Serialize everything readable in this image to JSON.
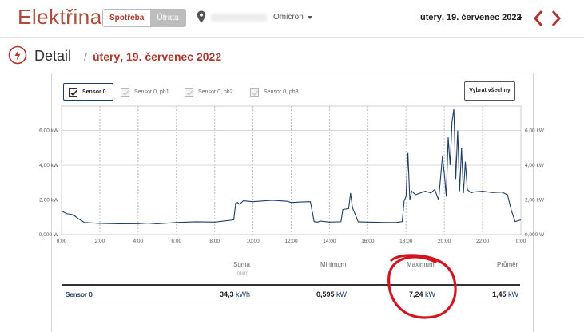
{
  "header": {
    "app_title": "Elektřina",
    "tabs": [
      {
        "label": "Spotřeba",
        "active": true
      },
      {
        "label": "Útrata",
        "active": false
      }
    ],
    "location": "Omicron",
    "date": "úterý, 19. červenec 2022",
    "accent_color": "#b0352b"
  },
  "page": {
    "title": "Detail",
    "breadcrumb_date": "úterý, 19. červenec 2022",
    "slash": "/"
  },
  "sensors": {
    "buttons": [
      {
        "label": "Sensor 0",
        "checked": true
      },
      {
        "label": "Sensor 0, ph1",
        "checked": false
      },
      {
        "label": "Sensor 0, ph2",
        "checked": false
      },
      {
        "label": "Sensor 0, ph3",
        "checked": false
      }
    ],
    "select_all": "Vybrat všechny"
  },
  "chart_data": {
    "type": "line",
    "y_ticks": [
      "0,000 W",
      "2,00 kW",
      "4,00 kW",
      "6,00 kW"
    ],
    "y_tick_values": [
      0,
      2,
      4,
      6
    ],
    "ylim": [
      0,
      7.4
    ],
    "x_ticks": [
      "0:00",
      "2:00",
      "4:00",
      "6:00",
      "8:00",
      "10:00",
      "12:00",
      "14:00",
      "16:00",
      "18:00",
      "20:00",
      "22:00",
      "0:00"
    ],
    "xlim": [
      0,
      24
    ],
    "grid": true,
    "line_color": "#1e3d66",
    "series": [
      {
        "x": [
          0,
          0.3,
          0.6,
          0.9,
          1.2,
          1.5,
          2,
          3,
          4,
          4.5,
          5,
          6,
          7,
          8,
          9,
          9.1,
          9.2,
          9.3,
          9.5,
          10,
          11,
          11.8,
          12,
          12.5,
          13,
          13.2,
          13.4,
          13.5,
          14,
          14.6,
          14.7,
          15,
          15.1,
          15.2,
          15.5,
          16,
          17,
          17.5,
          17.8,
          17.9,
          18,
          18.1,
          18.2,
          18.3,
          18.5,
          19,
          19.3,
          19.5,
          19.7,
          19.9,
          20,
          20.1,
          20.2,
          20.3,
          20.4,
          20.5,
          20.6,
          20.7,
          20.8,
          20.9,
          21,
          21.1,
          21.2,
          21.3,
          21.4,
          21.5,
          22,
          22.5,
          23,
          23.3,
          23.5,
          23.7,
          24
        ],
        "y": [
          1.35,
          1.2,
          1.15,
          0.9,
          0.7,
          0.68,
          0.65,
          0.62,
          0.63,
          0.66,
          0.62,
          0.7,
          0.74,
          0.72,
          0.85,
          1.8,
          1.85,
          1.75,
          1.95,
          1.9,
          1.98,
          1.92,
          1.85,
          1.88,
          1.9,
          0.75,
          0.72,
          0.78,
          0.72,
          0.74,
          1.45,
          1.5,
          2.4,
          1.55,
          0.74,
          0.72,
          0.7,
          0.7,
          0.75,
          1.95,
          2.2,
          4.7,
          2.0,
          2.5,
          2.3,
          2.5,
          2.4,
          2.6,
          2.0,
          4.5,
          3.5,
          2.2,
          5.6,
          4.0,
          6.5,
          7.24,
          3.2,
          6.0,
          2.5,
          5.0,
          2.4,
          4.2,
          2.6,
          2.5,
          2.4,
          2.45,
          2.5,
          2.42,
          2.45,
          2.3,
          1.4,
          0.75,
          0.85
        ]
      }
    ]
  },
  "summary": {
    "columns": [
      {
        "label": "Suma",
        "sub": "(den)"
      },
      {
        "label": "Minimum"
      },
      {
        "label": "Maximum"
      },
      {
        "label": "Průměr"
      }
    ],
    "rows": [
      {
        "label": "Sensor 0",
        "values": [
          {
            "num": "34,3",
            "unit": "kWh"
          },
          {
            "num": "0,595",
            "unit": "kW"
          },
          {
            "num": "7,24",
            "unit": "kW"
          },
          {
            "num": "1,45",
            "unit": "kW"
          }
        ]
      }
    ]
  },
  "annotation_color": "#d4141e"
}
